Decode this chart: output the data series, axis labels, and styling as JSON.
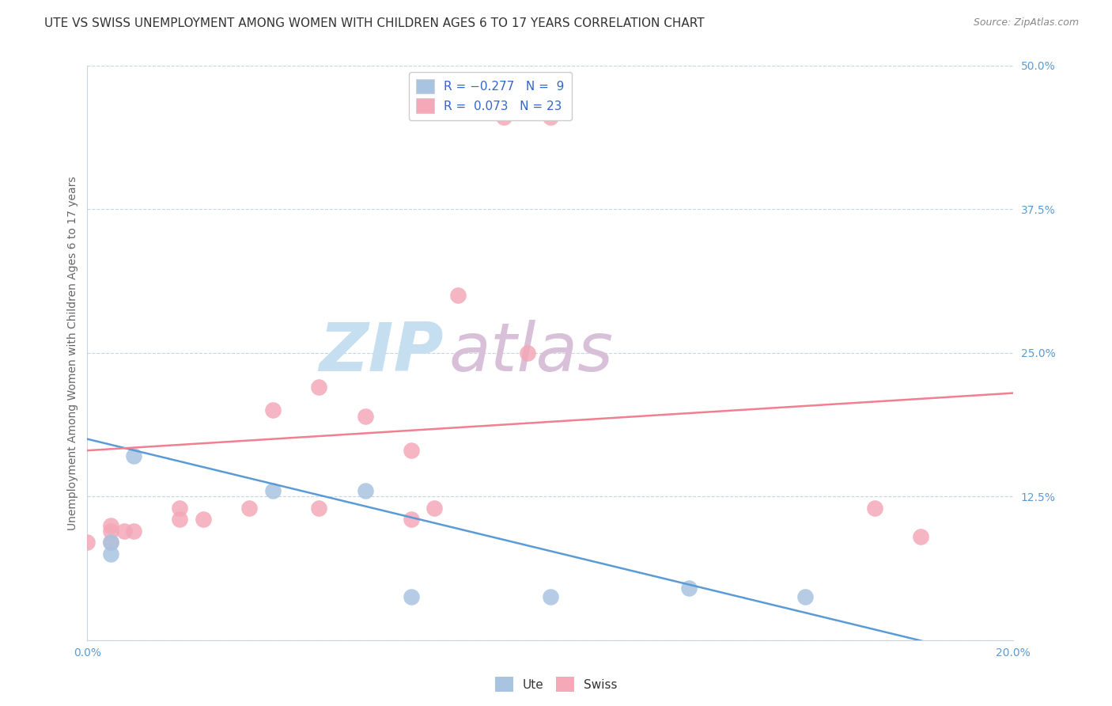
{
  "title": "UTE VS SWISS UNEMPLOYMENT AMONG WOMEN WITH CHILDREN AGES 6 TO 17 YEARS CORRELATION CHART",
  "source": "Source: ZipAtlas.com",
  "ylabel": "Unemployment Among Women with Children Ages 6 to 17 years",
  "xlim": [
    0.0,
    0.2
  ],
  "ylim": [
    0.0,
    0.5
  ],
  "yticks_right": [
    0.0,
    0.125,
    0.25,
    0.375,
    0.5
  ],
  "yticklabels_right": [
    "",
    "12.5%",
    "25.0%",
    "37.5%",
    "50.0%"
  ],
  "ute_color": "#a8c4e0",
  "swiss_color": "#f4a8b8",
  "ute_line_color": "#5b9bd5",
  "swiss_line_color": "#f08090",
  "R_ute": -0.277,
  "N_ute": 9,
  "R_swiss": 0.073,
  "N_swiss": 23,
  "ute_points": [
    [
      0.005,
      0.085
    ],
    [
      0.005,
      0.075
    ],
    [
      0.01,
      0.16
    ],
    [
      0.04,
      0.13
    ],
    [
      0.06,
      0.13
    ],
    [
      0.07,
      0.038
    ],
    [
      0.1,
      0.038
    ],
    [
      0.13,
      0.045
    ],
    [
      0.155,
      0.038
    ]
  ],
  "swiss_points": [
    [
      0.0,
      0.085
    ],
    [
      0.005,
      0.085
    ],
    [
      0.005,
      0.095
    ],
    [
      0.005,
      0.1
    ],
    [
      0.008,
      0.095
    ],
    [
      0.01,
      0.095
    ],
    [
      0.02,
      0.115
    ],
    [
      0.02,
      0.105
    ],
    [
      0.025,
      0.105
    ],
    [
      0.035,
      0.115
    ],
    [
      0.04,
      0.2
    ],
    [
      0.05,
      0.22
    ],
    [
      0.05,
      0.115
    ],
    [
      0.06,
      0.195
    ],
    [
      0.07,
      0.165
    ],
    [
      0.07,
      0.105
    ],
    [
      0.075,
      0.115
    ],
    [
      0.08,
      0.3
    ],
    [
      0.09,
      0.455
    ],
    [
      0.095,
      0.25
    ],
    [
      0.1,
      0.455
    ],
    [
      0.17,
      0.115
    ],
    [
      0.18,
      0.09
    ]
  ],
  "watermark_zip_color": "#c5dff0",
  "watermark_atlas_color": "#d8c0d8",
  "background_color": "#ffffff",
  "grid_color": "#c8d4de",
  "title_fontsize": 11,
  "label_fontsize": 10,
  "tick_fontsize": 10,
  "legend_fontsize": 11,
  "dot_size": 220,
  "title_color": "#333333",
  "axis_color": "#5b9bd5",
  "source_color": "#888888"
}
